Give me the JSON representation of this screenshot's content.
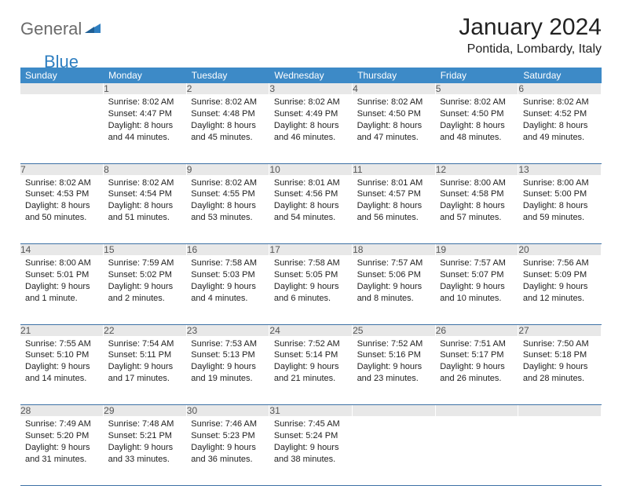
{
  "brand": {
    "part1": "General",
    "part2": "Blue"
  },
  "title": "January 2024",
  "location": "Pontida, Lombardy, Italy",
  "colors": {
    "header_bg": "#3d8ac7",
    "header_text": "#ffffff",
    "daynum_bg": "#e8e8e8",
    "daynum_text": "#555555",
    "rule": "#3d71a5",
    "brand_gray": "#6b6b6b",
    "brand_blue": "#2f7fc1",
    "body_text": "#222222"
  },
  "fonts": {
    "title_size_pt": 22,
    "location_size_pt": 12,
    "header_size_pt": 9,
    "daynum_size_pt": 9,
    "cell_size_pt": 8
  },
  "weekdays": [
    "Sunday",
    "Monday",
    "Tuesday",
    "Wednesday",
    "Thursday",
    "Friday",
    "Saturday"
  ],
  "weeks": [
    [
      {
        "n": "",
        "sunrise": "",
        "sunset": "",
        "daylight": ""
      },
      {
        "n": "1",
        "sunrise": "Sunrise: 8:02 AM",
        "sunset": "Sunset: 4:47 PM",
        "daylight": "Daylight: 8 hours and 44 minutes."
      },
      {
        "n": "2",
        "sunrise": "Sunrise: 8:02 AM",
        "sunset": "Sunset: 4:48 PM",
        "daylight": "Daylight: 8 hours and 45 minutes."
      },
      {
        "n": "3",
        "sunrise": "Sunrise: 8:02 AM",
        "sunset": "Sunset: 4:49 PM",
        "daylight": "Daylight: 8 hours and 46 minutes."
      },
      {
        "n": "4",
        "sunrise": "Sunrise: 8:02 AM",
        "sunset": "Sunset: 4:50 PM",
        "daylight": "Daylight: 8 hours and 47 minutes."
      },
      {
        "n": "5",
        "sunrise": "Sunrise: 8:02 AM",
        "sunset": "Sunset: 4:50 PM",
        "daylight": "Daylight: 8 hours and 48 minutes."
      },
      {
        "n": "6",
        "sunrise": "Sunrise: 8:02 AM",
        "sunset": "Sunset: 4:52 PM",
        "daylight": "Daylight: 8 hours and 49 minutes."
      }
    ],
    [
      {
        "n": "7",
        "sunrise": "Sunrise: 8:02 AM",
        "sunset": "Sunset: 4:53 PM",
        "daylight": "Daylight: 8 hours and 50 minutes."
      },
      {
        "n": "8",
        "sunrise": "Sunrise: 8:02 AM",
        "sunset": "Sunset: 4:54 PM",
        "daylight": "Daylight: 8 hours and 51 minutes."
      },
      {
        "n": "9",
        "sunrise": "Sunrise: 8:02 AM",
        "sunset": "Sunset: 4:55 PM",
        "daylight": "Daylight: 8 hours and 53 minutes."
      },
      {
        "n": "10",
        "sunrise": "Sunrise: 8:01 AM",
        "sunset": "Sunset: 4:56 PM",
        "daylight": "Daylight: 8 hours and 54 minutes."
      },
      {
        "n": "11",
        "sunrise": "Sunrise: 8:01 AM",
        "sunset": "Sunset: 4:57 PM",
        "daylight": "Daylight: 8 hours and 56 minutes."
      },
      {
        "n": "12",
        "sunrise": "Sunrise: 8:00 AM",
        "sunset": "Sunset: 4:58 PM",
        "daylight": "Daylight: 8 hours and 57 minutes."
      },
      {
        "n": "13",
        "sunrise": "Sunrise: 8:00 AM",
        "sunset": "Sunset: 5:00 PM",
        "daylight": "Daylight: 8 hours and 59 minutes."
      }
    ],
    [
      {
        "n": "14",
        "sunrise": "Sunrise: 8:00 AM",
        "sunset": "Sunset: 5:01 PM",
        "daylight": "Daylight: 9 hours and 1 minute."
      },
      {
        "n": "15",
        "sunrise": "Sunrise: 7:59 AM",
        "sunset": "Sunset: 5:02 PM",
        "daylight": "Daylight: 9 hours and 2 minutes."
      },
      {
        "n": "16",
        "sunrise": "Sunrise: 7:58 AM",
        "sunset": "Sunset: 5:03 PM",
        "daylight": "Daylight: 9 hours and 4 minutes."
      },
      {
        "n": "17",
        "sunrise": "Sunrise: 7:58 AM",
        "sunset": "Sunset: 5:05 PM",
        "daylight": "Daylight: 9 hours and 6 minutes."
      },
      {
        "n": "18",
        "sunrise": "Sunrise: 7:57 AM",
        "sunset": "Sunset: 5:06 PM",
        "daylight": "Daylight: 9 hours and 8 minutes."
      },
      {
        "n": "19",
        "sunrise": "Sunrise: 7:57 AM",
        "sunset": "Sunset: 5:07 PM",
        "daylight": "Daylight: 9 hours and 10 minutes."
      },
      {
        "n": "20",
        "sunrise": "Sunrise: 7:56 AM",
        "sunset": "Sunset: 5:09 PM",
        "daylight": "Daylight: 9 hours and 12 minutes."
      }
    ],
    [
      {
        "n": "21",
        "sunrise": "Sunrise: 7:55 AM",
        "sunset": "Sunset: 5:10 PM",
        "daylight": "Daylight: 9 hours and 14 minutes."
      },
      {
        "n": "22",
        "sunrise": "Sunrise: 7:54 AM",
        "sunset": "Sunset: 5:11 PM",
        "daylight": "Daylight: 9 hours and 17 minutes."
      },
      {
        "n": "23",
        "sunrise": "Sunrise: 7:53 AM",
        "sunset": "Sunset: 5:13 PM",
        "daylight": "Daylight: 9 hours and 19 minutes."
      },
      {
        "n": "24",
        "sunrise": "Sunrise: 7:52 AM",
        "sunset": "Sunset: 5:14 PM",
        "daylight": "Daylight: 9 hours and 21 minutes."
      },
      {
        "n": "25",
        "sunrise": "Sunrise: 7:52 AM",
        "sunset": "Sunset: 5:16 PM",
        "daylight": "Daylight: 9 hours and 23 minutes."
      },
      {
        "n": "26",
        "sunrise": "Sunrise: 7:51 AM",
        "sunset": "Sunset: 5:17 PM",
        "daylight": "Daylight: 9 hours and 26 minutes."
      },
      {
        "n": "27",
        "sunrise": "Sunrise: 7:50 AM",
        "sunset": "Sunset: 5:18 PM",
        "daylight": "Daylight: 9 hours and 28 minutes."
      }
    ],
    [
      {
        "n": "28",
        "sunrise": "Sunrise: 7:49 AM",
        "sunset": "Sunset: 5:20 PM",
        "daylight": "Daylight: 9 hours and 31 minutes."
      },
      {
        "n": "29",
        "sunrise": "Sunrise: 7:48 AM",
        "sunset": "Sunset: 5:21 PM",
        "daylight": "Daylight: 9 hours and 33 minutes."
      },
      {
        "n": "30",
        "sunrise": "Sunrise: 7:46 AM",
        "sunset": "Sunset: 5:23 PM",
        "daylight": "Daylight: 9 hours and 36 minutes."
      },
      {
        "n": "31",
        "sunrise": "Sunrise: 7:45 AM",
        "sunset": "Sunset: 5:24 PM",
        "daylight": "Daylight: 9 hours and 38 minutes."
      },
      {
        "n": "",
        "sunrise": "",
        "sunset": "",
        "daylight": ""
      },
      {
        "n": "",
        "sunrise": "",
        "sunset": "",
        "daylight": ""
      },
      {
        "n": "",
        "sunrise": "",
        "sunset": "",
        "daylight": ""
      }
    ]
  ]
}
